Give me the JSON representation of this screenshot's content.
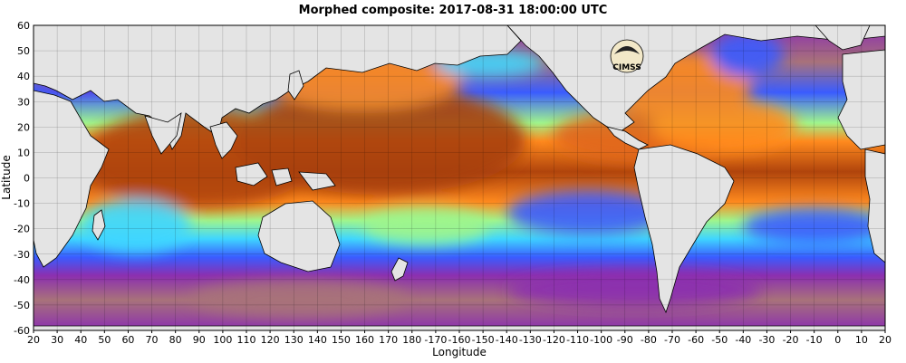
{
  "title": "Morphed composite: 2017-08-31 18:00:00 UTC",
  "xlabel": "Longitude",
  "ylabel": "Latitude",
  "logo_text": "CIMSS",
  "x_ticks": [
    "20",
    "30",
    "40",
    "50",
    "60",
    "70",
    "80",
    "90",
    "100",
    "110",
    "120",
    "130",
    "140",
    "150",
    "160",
    "170",
    "180",
    "-170",
    "-160",
    "-150",
    "-140",
    "-130",
    "-120",
    "-110",
    "-100",
    "-90",
    "-80",
    "-70",
    "-60",
    "-50",
    "-40",
    "-30",
    "-20",
    "-10",
    "0",
    "10",
    "20"
  ],
  "y_ticks": [
    "60",
    "50",
    "40",
    "30",
    "20",
    "10",
    "0",
    "-10",
    "-20",
    "-30",
    "-40",
    "-50",
    "-60"
  ],
  "colors": {
    "land": "#e4e4e4",
    "very_moist": "#b0440c",
    "moist": "#ff8a1e",
    "mid": "#9ff58c",
    "cyan": "#3fd6ff",
    "blue": "#3a5cff",
    "dry": "#8b2fb0",
    "very_dry": "#a8727a"
  }
}
